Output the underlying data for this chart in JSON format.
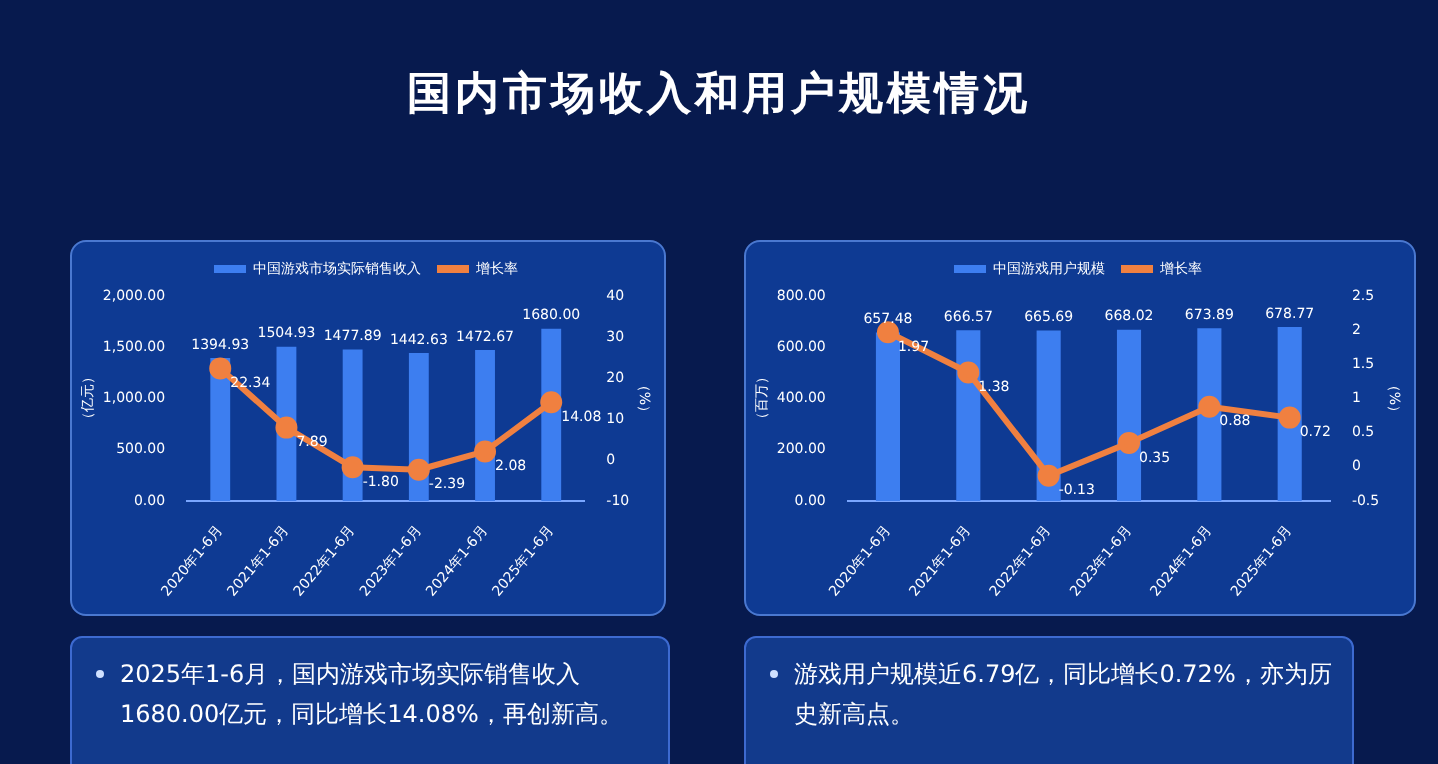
{
  "chart_data": [
    {
      "type": "other",
      "title": "国内市场收入和用户规模情况"
    },
    {
      "type": "bar",
      "categories": [
        "2020年1-6月",
        "2021年1-6月",
        "2022年1-6月",
        "2023年1-6月",
        "2024年1-6月",
        "2025年1-6月"
      ],
      "series": [
        {
          "name": "中国游戏市场实际销售收入",
          "color": "#3d7ef0",
          "values": [
            1394.93,
            1504.93,
            1477.89,
            1442.63,
            1472.67,
            1680.0
          ],
          "value_labels": [
            "1394.93",
            "1504.93",
            "1477.89",
            "1442.63",
            "1472.67",
            "1680.00"
          ]
        },
        {
          "name": "增长率",
          "type": "line",
          "axis": "y2",
          "color": "#f08040",
          "values": [
            22.34,
            7.89,
            -1.8,
            -2.39,
            2.08,
            14.08
          ],
          "value_labels": [
            "22.34",
            "7.89",
            "-1.80",
            "-2.39",
            "2.08",
            "14.08"
          ]
        }
      ],
      "ylabel": "（亿元）",
      "y2label": "（%）",
      "ylim": [
        0,
        2000
      ],
      "yticks": [
        {
          "value": 0,
          "label": "0.00"
        },
        {
          "value": 500,
          "label": "500.00"
        },
        {
          "value": 1000,
          "label": "1,000.00"
        },
        {
          "value": 1500,
          "label": "1,500.00"
        },
        {
          "value": 2000,
          "label": "2,000.00"
        }
      ],
      "y2lim": [
        -10,
        40
      ],
      "y2ticks": [
        -10,
        0,
        10,
        20,
        30,
        40
      ],
      "legend": "top",
      "marker": "circle",
      "grid": false
    },
    {
      "type": "bar",
      "categories": [
        "2020年1-6月",
        "2021年1-6月",
        "2022年1-6月",
        "2023年1-6月",
        "2024年1-6月",
        "2025年1-6月"
      ],
      "series": [
        {
          "name": "中国游戏用户规模",
          "color": "#3d7ef0",
          "values": [
            657.48,
            666.57,
            665.69,
            668.02,
            673.89,
            678.77
          ],
          "value_labels": [
            "657.48",
            "666.57",
            "665.69",
            "668.02",
            "673.89",
            "678.77"
          ]
        },
        {
          "name": "增长率",
          "type": "line",
          "axis": "y2",
          "color": "#f08040",
          "values": [
            1.97,
            1.38,
            -0.13,
            0.35,
            0.88,
            0.72
          ],
          "value_labels": [
            "1.97",
            "1.38",
            "-0.13",
            "0.35",
            "0.88",
            "0.72"
          ]
        }
      ],
      "ylabel": "（百万）",
      "y2label": "（%）",
      "ylim": [
        0,
        800
      ],
      "yticks": [
        {
          "value": 0,
          "label": "0.00"
        },
        {
          "value": 200,
          "label": "200.00"
        },
        {
          "value": 400,
          "label": "400.00"
        },
        {
          "value": 600,
          "label": "600.00"
        },
        {
          "value": 800,
          "label": "800.00"
        }
      ],
      "y2lim": [
        -0.5,
        2.5
      ],
      "y2ticks": [
        -0.5,
        0,
        0.5,
        1,
        1.5,
        2,
        2.5
      ],
      "legend": "top",
      "marker": "circle",
      "grid": false
    },
    {
      "type": "other",
      "annotations": [
        "2025年1-6月，国内游戏市场实际销售收入1680.00亿元，同比增长14.08%，再创新高。"
      ]
    },
    {
      "type": "other",
      "annotations": [
        "游戏用户规模近6.79亿，同比增长0.72%，亦为历史新高点。"
      ]
    }
  ]
}
